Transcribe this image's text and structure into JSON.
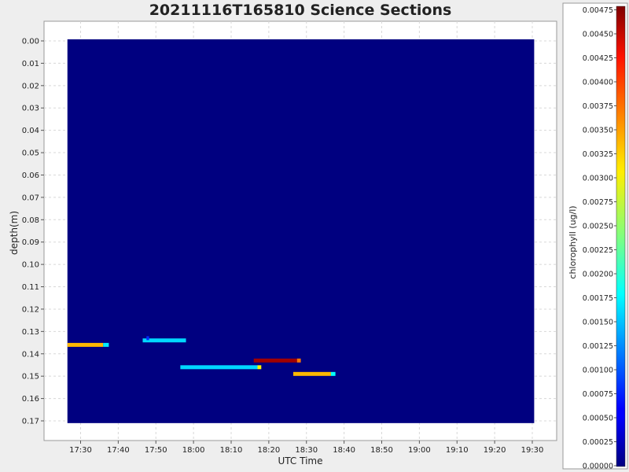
{
  "chart_data": {
    "type": "heatmap",
    "title": "20211116T165810 Science Sections",
    "xlabel": "UTC Time",
    "ylabel": "depth(m)",
    "x_ticks": [
      "17:30",
      "17:40",
      "17:50",
      "18:00",
      "18:10",
      "18:20",
      "18:30",
      "18:40",
      "18:50",
      "19:00",
      "19:10",
      "19:20",
      "19:30"
    ],
    "x_tick_minutes": [
      1050,
      1060,
      1070,
      1080,
      1090,
      1100,
      1110,
      1120,
      1130,
      1140,
      1150,
      1160,
      1170
    ],
    "x_range_minutes": [
      1046.5,
      1170.5
    ],
    "y_ticks": [
      "0.00",
      "0.01",
      "0.02",
      "0.03",
      "0.04",
      "0.05",
      "0.06",
      "0.07",
      "0.08",
      "0.09",
      "0.10",
      "0.11",
      "0.12",
      "0.13",
      "0.14",
      "0.15",
      "0.16",
      "0.17"
    ],
    "y_tick_values": [
      0.0,
      0.01,
      0.02,
      0.03,
      0.04,
      0.05,
      0.06,
      0.07,
      0.08,
      0.09,
      0.1,
      0.11,
      0.12,
      0.13,
      0.14,
      0.15,
      0.16,
      0.17
    ],
    "y_range": [
      0.0,
      0.171
    ],
    "y_inverted": true,
    "grid": true,
    "background_value": 0.0,
    "segments": [
      {
        "t_start": 1046.5,
        "t_end": 1056.0,
        "depth": 0.136,
        "value": 0.0033
      },
      {
        "t_start": 1056.0,
        "t_end": 1057.5,
        "depth": 0.136,
        "value": 0.0017
      },
      {
        "t_start": 1066.5,
        "t_end": 1078.0,
        "depth": 0.134,
        "value": 0.0016
      },
      {
        "t_start": 1067.5,
        "t_end": 1068.2,
        "depth": 0.133,
        "value": 0.0008
      },
      {
        "t_start": 1076.5,
        "t_end": 1097.0,
        "depth": 0.146,
        "value": 0.0016
      },
      {
        "t_start": 1097.0,
        "t_end": 1098.0,
        "depth": 0.146,
        "value": 0.003
      },
      {
        "t_start": 1096.0,
        "t_end": 1107.5,
        "depth": 0.143,
        "value": 0.0046
      },
      {
        "t_start": 1107.5,
        "t_end": 1108.5,
        "depth": 0.143,
        "value": 0.0036
      },
      {
        "t_start": 1106.5,
        "t_end": 1116.5,
        "depth": 0.149,
        "value": 0.0033
      },
      {
        "t_start": 1116.5,
        "t_end": 1117.7,
        "depth": 0.149,
        "value": 0.0018
      }
    ],
    "colorbar": {
      "label": "chlorophyll (ug/l)",
      "min": 0.0,
      "max": 0.00475,
      "colormap": "jet",
      "ticks": [
        "0.00475",
        "0.00450",
        "0.00425",
        "0.00400",
        "0.00375",
        "0.00350",
        "0.00325",
        "0.00300",
        "0.00275",
        "0.00250",
        "0.00225",
        "0.00200",
        "0.00175",
        "0.00150",
        "0.00125",
        "0.00100",
        "0.00075",
        "0.00050",
        "0.00025",
        "0.00000"
      ],
      "tick_values": [
        0.00475,
        0.0045,
        0.00425,
        0.004,
        0.00375,
        0.0035,
        0.00325,
        0.003,
        0.00275,
        0.0025,
        0.00225,
        0.002,
        0.00175,
        0.0015,
        0.00125,
        0.001,
        0.00075,
        0.0005,
        0.00025,
        0.0
      ]
    }
  }
}
